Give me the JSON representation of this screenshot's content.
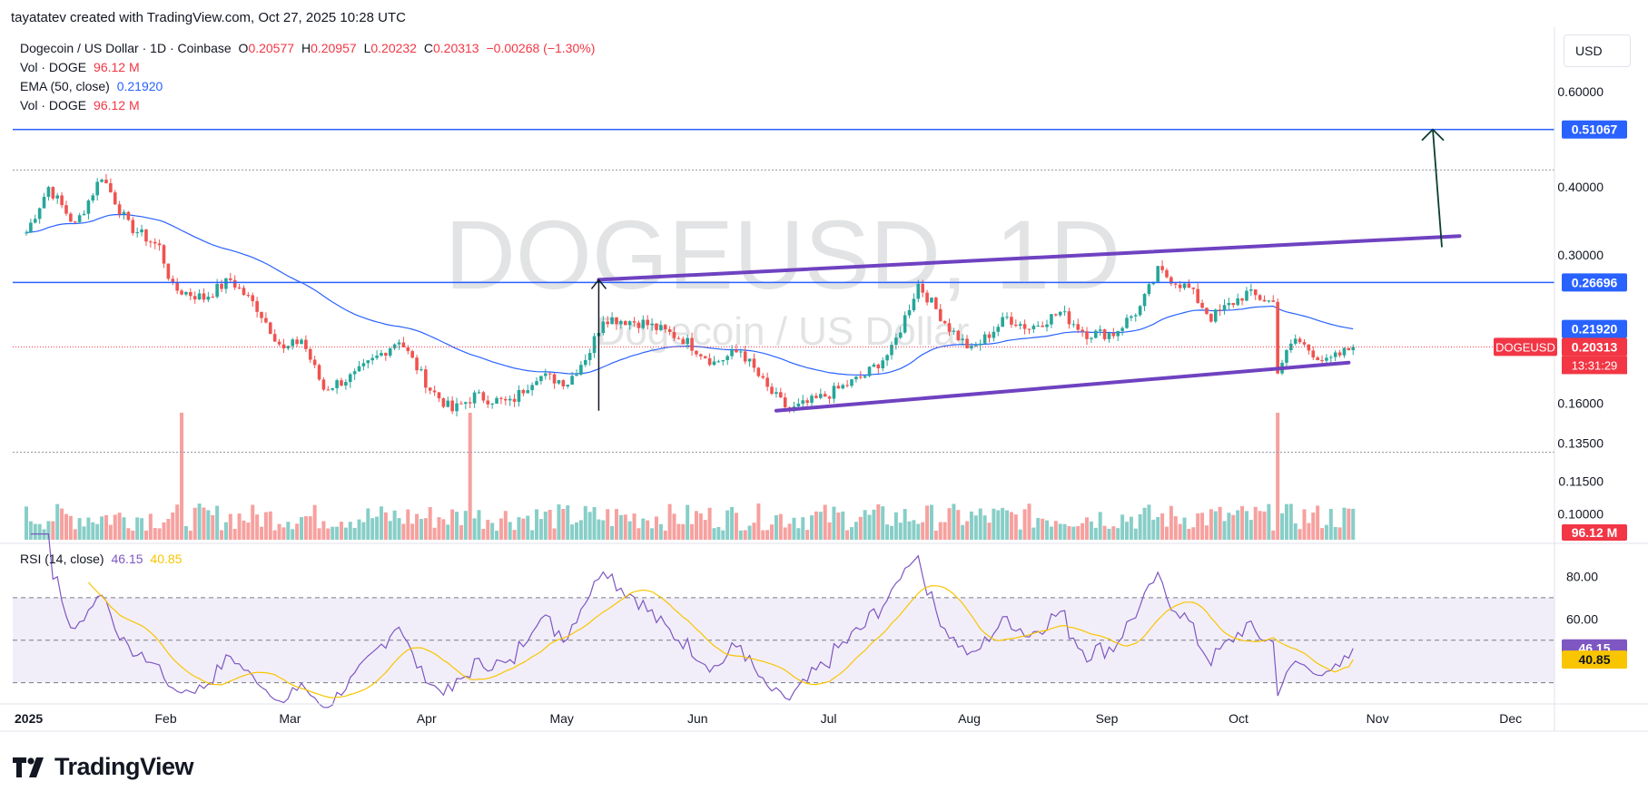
{
  "header": {
    "credit": "tayatatev created with TradingView.com, Oct 27, 2025 10:28 UTC"
  },
  "legend": {
    "symbol": "Dogecoin / US Dollar · 1D · Coinbase",
    "o_label": "O",
    "o": "0.20577",
    "h_label": "H",
    "h": "0.20957",
    "l_label": "L",
    "l": "0.20232",
    "c_label": "C",
    "c": "0.20313",
    "change": "−0.00268 (−1.30%)",
    "vol_label": "Vol · DOGE",
    "vol": "96.12 M",
    "ema_label": "EMA (50, close)",
    "ema": "0.21920",
    "vol2_label": "Vol · DOGE",
    "vol2": "96.12 M",
    "rsi_label": "RSI (14, close)",
    "rsi": "46.15",
    "rsi_ma": "40.85"
  },
  "currency_button": "USD",
  "watermark": {
    "ticker": "DOGEUSD, 1D",
    "name": "Dogecoin / US Dollar"
  },
  "price_axis": {
    "ticks": [
      "0.60000",
      "0.40000",
      "0.30000",
      "0.16000",
      "0.13500",
      "0.11500",
      "0.10000"
    ],
    "tag_level_high": "0.51067",
    "tag_level_mid": "0.26696",
    "tag_ema": "0.21920",
    "tag_symbol": "DOGEUSD",
    "tag_price": "0.20313",
    "tag_countdown": "13:31:29",
    "tag_volume": "96.12 M"
  },
  "rsi_axis": {
    "ticks": [
      "80.00",
      "60.00"
    ],
    "tag_rsi": "46.15",
    "tag_rsi_ma": "40.85"
  },
  "time_axis": {
    "labels": [
      "2025",
      "Feb",
      "Mar",
      "Apr",
      "May",
      "Jun",
      "Jul",
      "Aug",
      "Sep",
      "Oct",
      "Nov",
      "Dec"
    ]
  },
  "brand": {
    "name": "TradingView"
  },
  "colors": {
    "up": "#26a69a",
    "down": "#ef5350",
    "ema": "#2962ff",
    "channel": "#6f42c1",
    "rsi": "#7e57c2",
    "rsi_ma": "#f9c500",
    "level": "#2962ff"
  },
  "chart_data": {
    "type": "candlestick",
    "title": "Dogecoin / US Dollar · 1D · Coinbase",
    "y_scale": "log",
    "ylim": [
      0.095,
      0.65
    ],
    "key_levels": [
      0.51067,
      0.26696,
      0.43,
      0.13
    ],
    "channel": {
      "upper": [
        [
          "2025-05-10",
          0.27
        ],
        [
          "2025-11-20",
          0.325
        ]
      ],
      "lower": [
        [
          "2025-06-19",
          0.155
        ],
        [
          "2025-10-26",
          0.19
        ]
      ]
    },
    "anchors": [
      [
        "2025-01-01",
        0.33
      ],
      [
        "2025-01-06",
        0.4
      ],
      [
        "2025-01-12",
        0.34
      ],
      [
        "2025-01-18",
        0.42
      ],
      [
        "2025-01-24",
        0.34
      ],
      [
        "2025-01-31",
        0.31
      ],
      [
        "2025-02-03",
        0.26
      ],
      [
        "2025-02-10",
        0.25
      ],
      [
        "2025-02-16",
        0.27
      ],
      [
        "2025-02-22",
        0.24
      ],
      [
        "2025-02-28",
        0.2
      ],
      [
        "2025-03-04",
        0.21
      ],
      [
        "2025-03-09",
        0.17
      ],
      [
        "2025-03-16",
        0.18
      ],
      [
        "2025-03-26",
        0.21
      ],
      [
        "2025-04-02",
        0.17
      ],
      [
        "2025-04-07",
        0.155
      ],
      [
        "2025-04-12",
        0.165
      ],
      [
        "2025-04-20",
        0.16
      ],
      [
        "2025-04-26",
        0.18
      ],
      [
        "2025-05-03",
        0.175
      ],
      [
        "2025-05-08",
        0.2
      ],
      [
        "2025-05-11",
        0.23
      ],
      [
        "2025-05-20",
        0.225
      ],
      [
        "2025-05-29",
        0.21
      ],
      [
        "2025-06-05",
        0.19
      ],
      [
        "2025-06-11",
        0.2
      ],
      [
        "2025-06-17",
        0.17
      ],
      [
        "2025-06-22",
        0.155
      ],
      [
        "2025-06-30",
        0.165
      ],
      [
        "2025-07-09",
        0.18
      ],
      [
        "2025-07-15",
        0.2
      ],
      [
        "2025-07-21",
        0.265
      ],
      [
        "2025-07-28",
        0.22
      ],
      [
        "2025-08-02",
        0.2
      ],
      [
        "2025-08-10",
        0.23
      ],
      [
        "2025-08-15",
        0.22
      ],
      [
        "2025-08-22",
        0.235
      ],
      [
        "2025-08-28",
        0.215
      ],
      [
        "2025-09-03",
        0.215
      ],
      [
        "2025-09-09",
        0.24
      ],
      [
        "2025-09-13",
        0.28
      ],
      [
        "2025-09-20",
        0.26
      ],
      [
        "2025-09-25",
        0.23
      ],
      [
        "2025-10-03",
        0.255
      ],
      [
        "2025-10-09",
        0.245
      ],
      [
        "2025-10-10",
        0.185
      ],
      [
        "2025-10-14",
        0.21
      ],
      [
        "2025-10-21",
        0.19
      ],
      [
        "2025-10-27",
        0.20313
      ]
    ],
    "ema50_last": 0.2192,
    "rsi_last": 46.15,
    "rsi_ma_last": 40.85,
    "rsi_ylim": [
      20,
      90
    ],
    "rsi_bands": [
      30,
      50,
      70
    ],
    "volume_last": "96.12 M",
    "projection": {
      "from": [
        "2025-11-16",
        0.31
      ],
      "to": [
        "2025-11-16",
        0.51067
      ]
    }
  }
}
